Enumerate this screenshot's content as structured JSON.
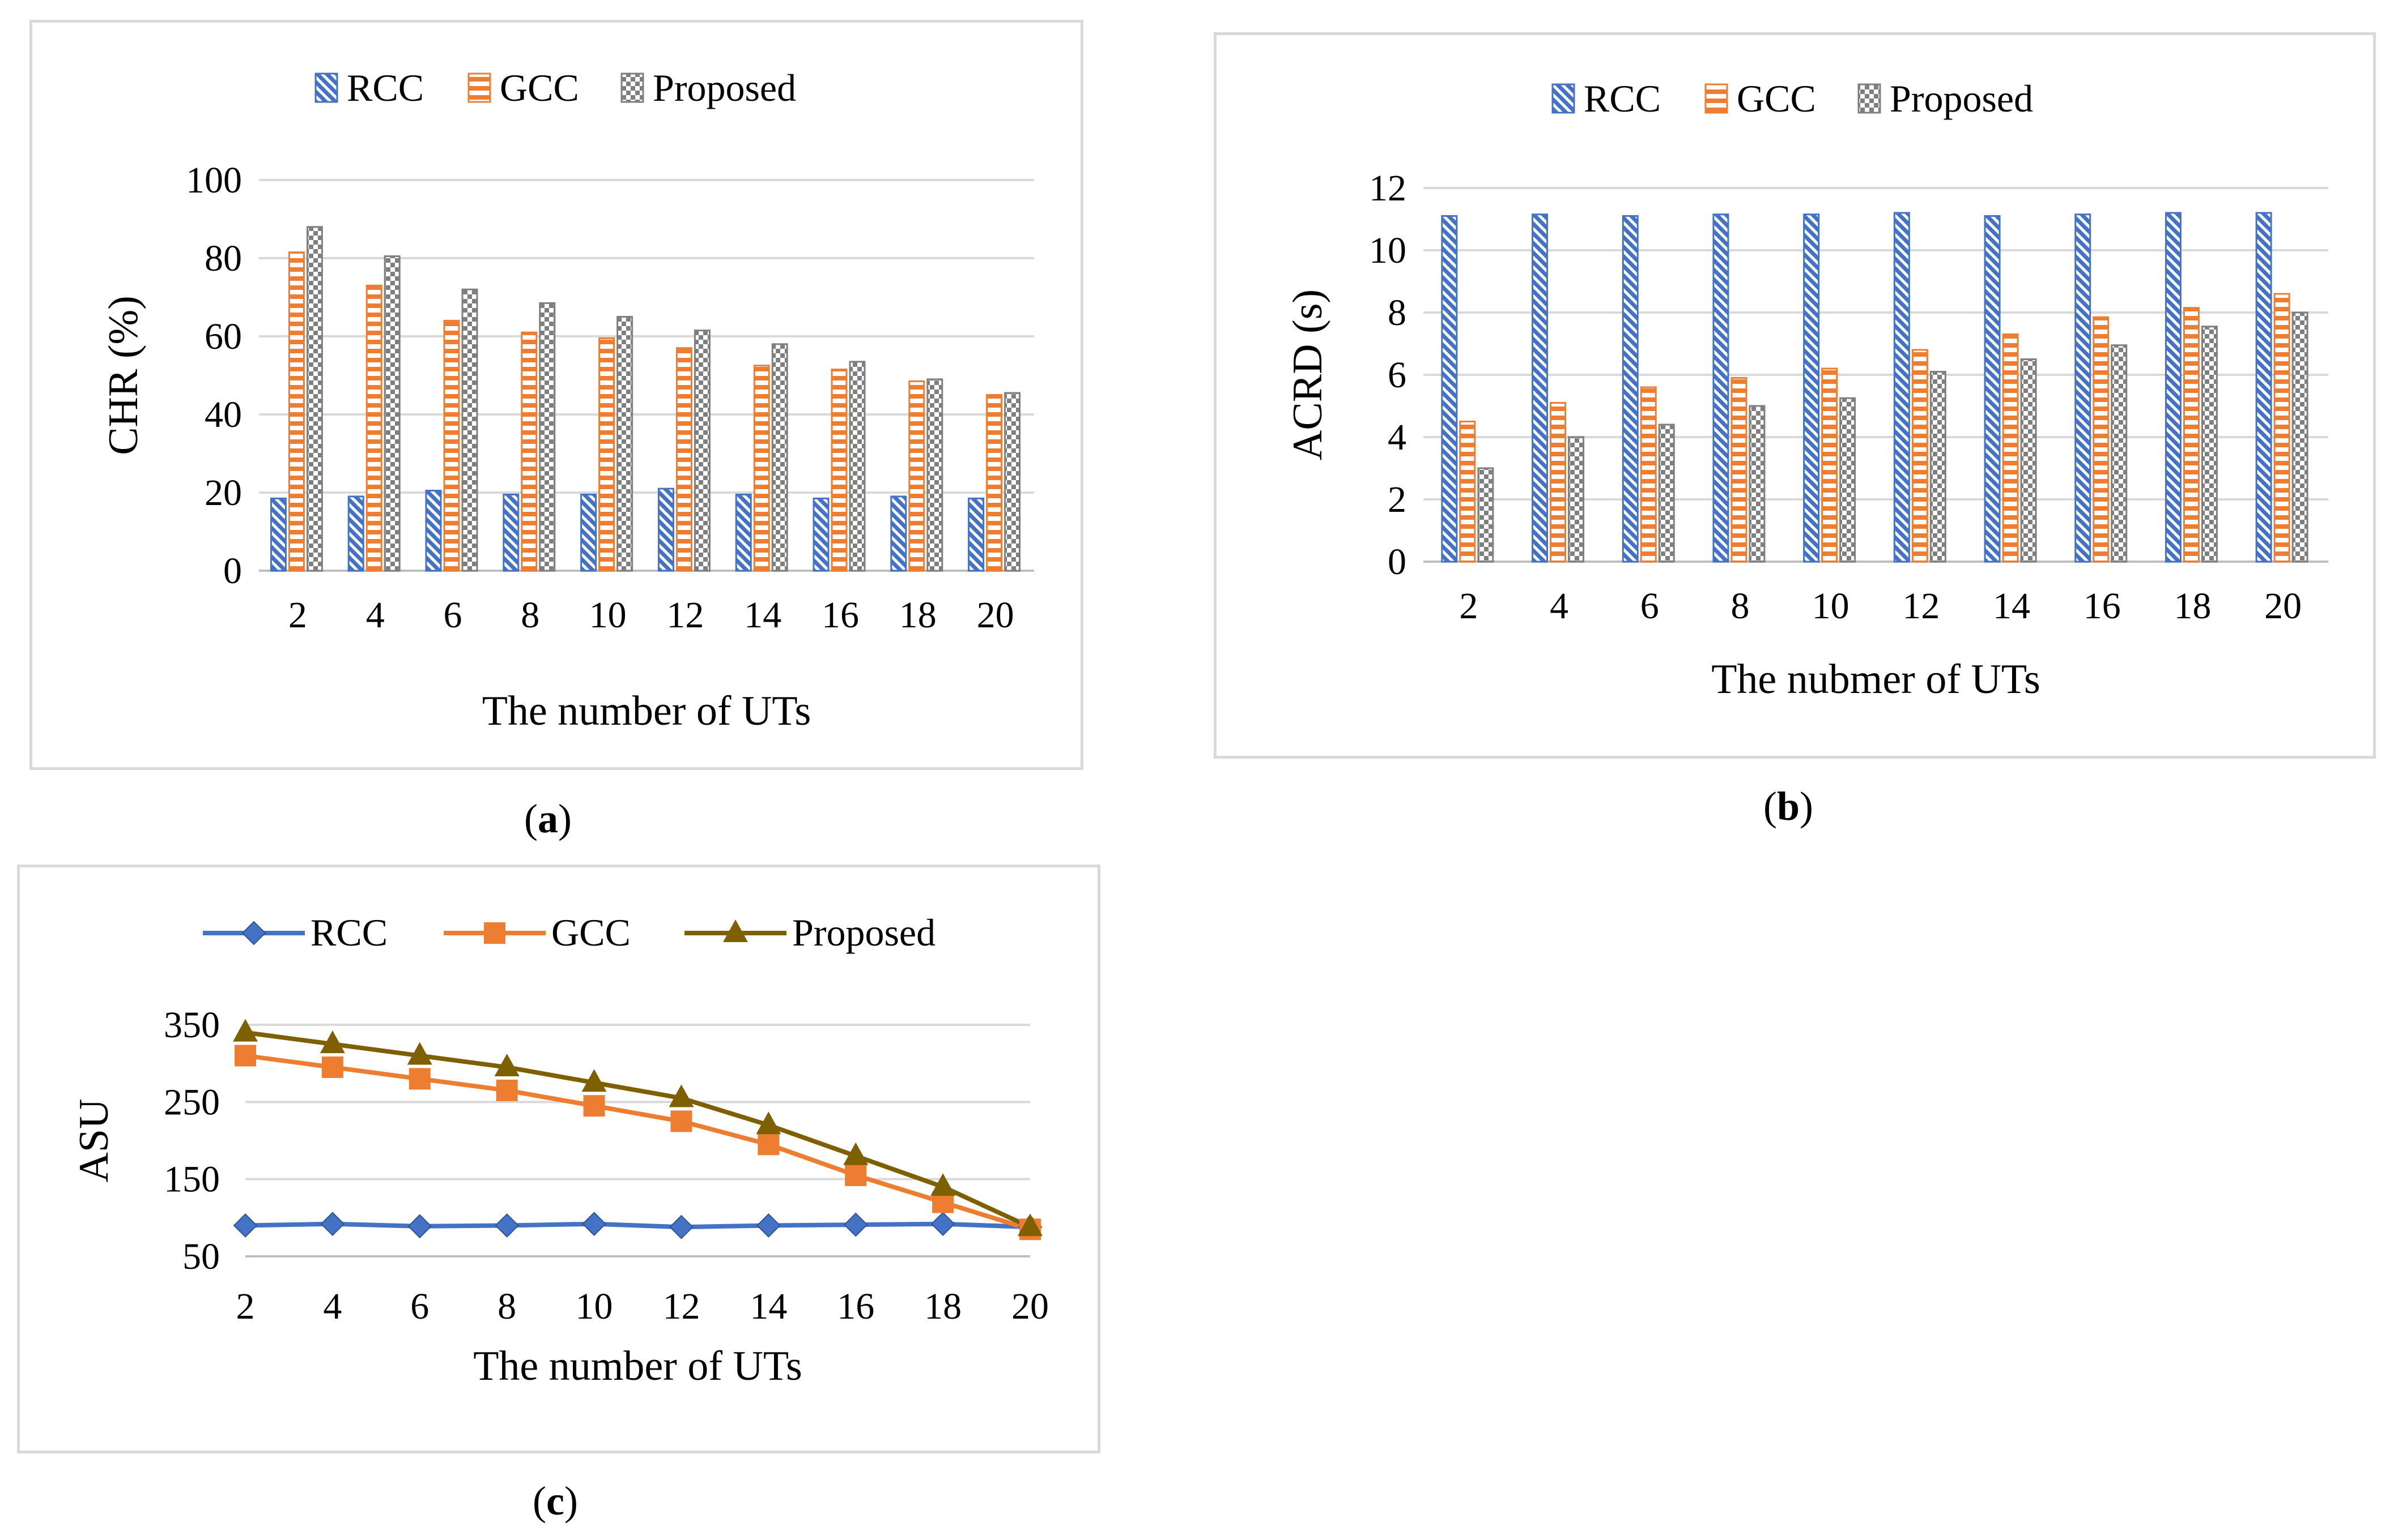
{
  "chart_data": [
    {
      "id": "a",
      "type": "bar",
      "caption": "a",
      "categories": [
        "2",
        "4",
        "6",
        "8",
        "10",
        "12",
        "14",
        "16",
        "18",
        "20"
      ],
      "series": [
        {
          "name": "RCC",
          "values": [
            18.5,
            19,
            20.5,
            19.5,
            19.5,
            21,
            19.5,
            18.5,
            19,
            18.5
          ]
        },
        {
          "name": "GCC",
          "values": [
            81.5,
            73,
            64,
            61,
            59.5,
            57,
            52.5,
            51.5,
            48.5,
            45
          ]
        },
        {
          "name": "Proposed",
          "values": [
            88,
            80.5,
            72,
            68.5,
            65,
            61.5,
            58,
            53.5,
            49,
            45.5
          ]
        }
      ],
      "title": "",
      "xlabel": "The number of UTs",
      "ylabel": "CHR (%)",
      "ylim": [
        0,
        100
      ],
      "yticks": [
        "0",
        "20",
        "40",
        "60",
        "80",
        "100"
      ],
      "grid": true,
      "legend": "top"
    },
    {
      "id": "b",
      "type": "bar",
      "caption": "b",
      "categories": [
        "2",
        "4",
        "6",
        "8",
        "10",
        "12",
        "14",
        "16",
        "18",
        "20"
      ],
      "series": [
        {
          "name": "RCC",
          "values": [
            11.1,
            11.15,
            11.1,
            11.15,
            11.15,
            11.2,
            11.1,
            11.15,
            11.2,
            11.2
          ]
        },
        {
          "name": "GCC",
          "values": [
            4.5,
            5.1,
            5.6,
            5.9,
            6.2,
            6.8,
            7.3,
            7.85,
            8.15,
            8.6
          ]
        },
        {
          "name": "Proposed",
          "values": [
            3.0,
            4.0,
            4.4,
            5.0,
            5.25,
            6.1,
            6.5,
            6.95,
            7.55,
            8.0
          ]
        }
      ],
      "title": "",
      "xlabel": "The nubmer of UTs",
      "ylabel": "ACRD (s)",
      "ylim": [
        0,
        12
      ],
      "yticks": [
        "0",
        "2",
        "4",
        "6",
        "8",
        "10",
        "12"
      ],
      "grid": true,
      "legend": "top"
    },
    {
      "id": "c",
      "type": "line",
      "caption": "c",
      "categories": [
        "2",
        "4",
        "6",
        "8",
        "10",
        "12",
        "14",
        "16",
        "18",
        "20"
      ],
      "series": [
        {
          "name": "RCC",
          "values": [
            90,
            92,
            89,
            90,
            92,
            88,
            90,
            91,
            92,
            88
          ]
        },
        {
          "name": "GCC",
          "values": [
            310,
            295,
            280,
            265,
            245,
            225,
            195,
            155,
            120,
            85
          ]
        },
        {
          "name": "Proposed",
          "values": [
            340,
            325,
            310,
            295,
            275,
            255,
            220,
            180,
            140,
            88
          ]
        }
      ],
      "title": "",
      "xlabel": "The number of UTs",
      "ylabel": "ASU",
      "ylim": [
        50,
        350
      ],
      "yticks": [
        "50",
        "150",
        "250",
        "350"
      ],
      "grid": true,
      "legend": "top"
    }
  ],
  "colors": {
    "rcc": "#4472c4",
    "gcc": "#ed7d31",
    "proposed_bar": "#7f7f7f",
    "proposed_line": "#7f6000",
    "grid": "#d9d9d9",
    "axis": "#bfbfbf"
  }
}
